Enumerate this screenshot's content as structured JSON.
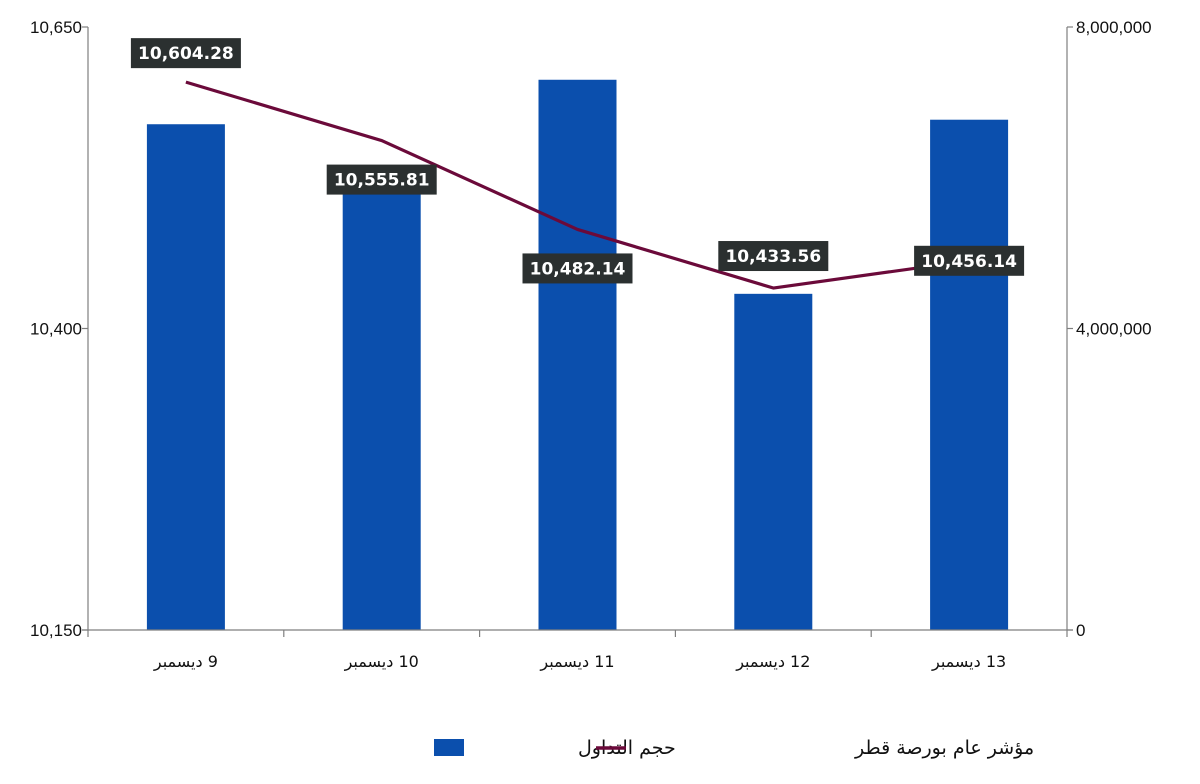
{
  "chart_data": {
    "type": "bar+line",
    "categories": [
      "9 ديسمبر",
      "10 ديسمبر",
      "11 ديسمبر",
      "12 ديسمبر",
      "13 ديسمبر"
    ],
    "series": [
      {
        "name": "حجم التداول",
        "type": "bar",
        "axis": "right",
        "color": "#0b4fad",
        "values": [
          6710000,
          6160000,
          7300000,
          4460000,
          6770000
        ]
      },
      {
        "name": "مؤشر عام بورصة قطر",
        "type": "line",
        "axis": "left",
        "color": "#6b0a3a",
        "values": [
          10604.28,
          10555.81,
          10482.14,
          10433.56,
          10456.14
        ],
        "labels": [
          "10,604.28",
          "10,555.81",
          "10,482.14",
          "10,433.56",
          "10,456.14"
        ]
      }
    ],
    "y_left": {
      "range": [
        10150,
        10650
      ],
      "ticks": [
        "10,150",
        "10,400",
        "10,650"
      ]
    },
    "y_right": {
      "range": [
        0,
        8000000
      ],
      "ticks": [
        "0",
        "4,000,000",
        "8,000,000"
      ]
    },
    "legend_position": "bottom",
    "label_box_color": "#2b3030"
  }
}
